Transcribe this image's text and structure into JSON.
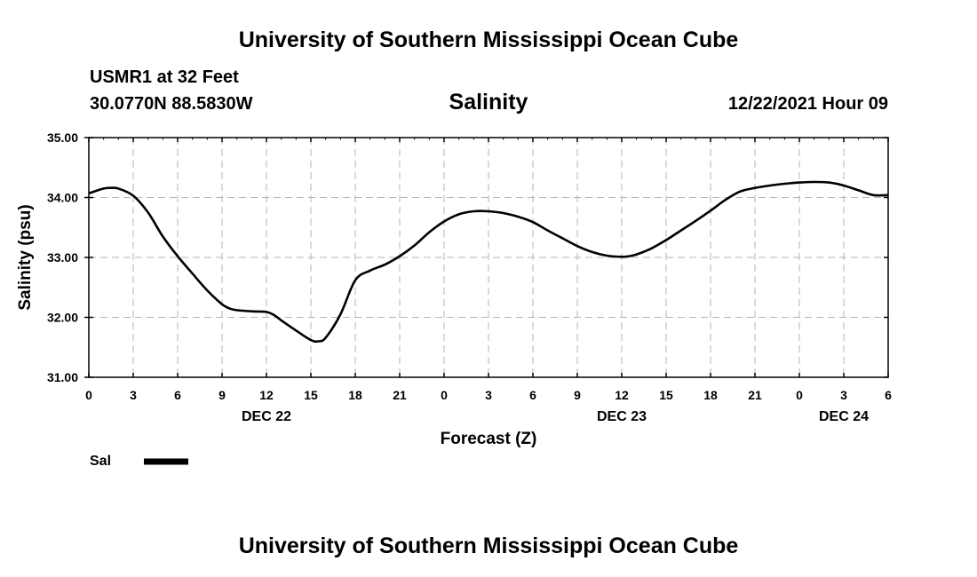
{
  "header": {
    "title": "University of Southern Mississippi Ocean Cube",
    "station": "USMR1 at 32 Feet",
    "coords": "30.0770N  88.5830W",
    "chart_title": "Salinity",
    "timestamp": "12/22/2021 Hour 09"
  },
  "footer": {
    "title": "University of Southern Mississippi Ocean Cube"
  },
  "legend": {
    "label": "Sal",
    "color": "#000000"
  },
  "chart_data": {
    "type": "line",
    "title": "Salinity",
    "xlabel": "Forecast (Z)",
    "ylabel": "Salinity (psu)",
    "xlim": [
      0,
      54
    ],
    "ylim": [
      31.0,
      35.0
    ],
    "grid": true,
    "x_tick_values": [
      0,
      3,
      6,
      9,
      12,
      15,
      18,
      21,
      24,
      27,
      30,
      33,
      36,
      39,
      42,
      45,
      48,
      51,
      54
    ],
    "x_tick_labels": [
      "0",
      "3",
      "6",
      "9",
      "12",
      "15",
      "18",
      "21",
      "0",
      "3",
      "6",
      "9",
      "12",
      "15",
      "18",
      "21",
      "0",
      "3",
      "6"
    ],
    "y_ticks": [
      31.0,
      32.0,
      33.0,
      34.0,
      35.0
    ],
    "y_tick_labels": [
      "31.00",
      "32.00",
      "33.00",
      "34.00",
      "35.00"
    ],
    "day_labels": [
      {
        "x": 12,
        "label": "DEC 22"
      },
      {
        "x": 36,
        "label": "DEC 23"
      },
      {
        "x": 51,
        "label": "DEC 24"
      }
    ],
    "series": [
      {
        "name": "Sal",
        "x": [
          0,
          1,
          1.5,
          2,
          3,
          4,
          5,
          6,
          7,
          8,
          9,
          9.5,
          10,
          11,
          12,
          12.5,
          13,
          14,
          15,
          15.5,
          16,
          17,
          18,
          19,
          20,
          21,
          22,
          23,
          24,
          25,
          26,
          27,
          28,
          29,
          30,
          31,
          32,
          33,
          34,
          35,
          36,
          36.5,
          37,
          38,
          39,
          40,
          41,
          42,
          43,
          44,
          45,
          46,
          47,
          48,
          49,
          50,
          51,
          52,
          53,
          54
        ],
        "values": [
          34.07,
          34.15,
          34.16,
          34.15,
          34.03,
          33.75,
          33.35,
          33.02,
          32.73,
          32.45,
          32.22,
          32.15,
          32.12,
          32.1,
          32.09,
          32.04,
          31.95,
          31.78,
          31.62,
          31.6,
          31.66,
          32.05,
          32.62,
          32.78,
          32.88,
          33.02,
          33.2,
          33.42,
          33.6,
          33.72,
          33.77,
          33.77,
          33.74,
          33.68,
          33.59,
          33.45,
          33.32,
          33.19,
          33.09,
          33.03,
          33.01,
          33.02,
          33.05,
          33.15,
          33.29,
          33.45,
          33.61,
          33.78,
          33.96,
          34.1,
          34.16,
          34.2,
          34.23,
          34.25,
          34.26,
          34.25,
          34.2,
          34.12,
          34.04,
          34.04
        ]
      }
    ]
  }
}
